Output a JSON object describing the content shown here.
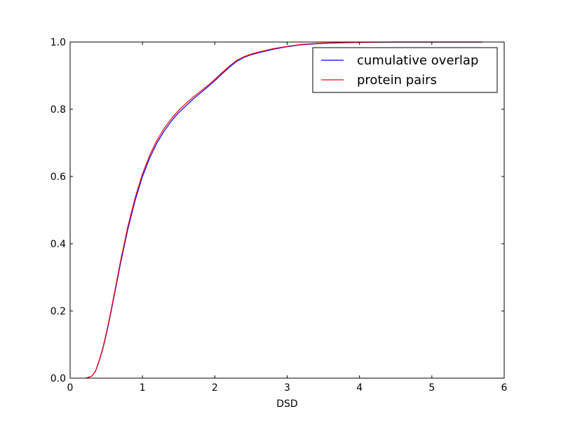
{
  "chart_data": {
    "type": "line",
    "title": "",
    "xlabel": "DSD",
    "ylabel": "",
    "xlim": [
      0,
      6
    ],
    "ylim": [
      0,
      1
    ],
    "x_ticks": [
      "0",
      "1",
      "2",
      "3",
      "4",
      "5",
      "6"
    ],
    "y_ticks": [
      "0.0",
      "0.2",
      "0.4",
      "0.6",
      "0.8",
      "1.0"
    ],
    "x_tick_values": [
      0,
      1,
      2,
      3,
      4,
      5,
      6
    ],
    "y_tick_values": [
      0,
      0.2,
      0.4,
      0.6,
      0.8,
      1.0
    ],
    "grid": false,
    "legend_position": "upper right",
    "series": [
      {
        "name": "cumulative overlap",
        "color": "#0000ff",
        "x": [
          0.22,
          0.3,
          0.35,
          0.4,
          0.45,
          0.5,
          0.55,
          0.6,
          0.7,
          0.8,
          0.9,
          1.0,
          1.1,
          1.2,
          1.3,
          1.4,
          1.5,
          1.6,
          1.7,
          1.8,
          1.9,
          2.0,
          2.1,
          2.2,
          2.3,
          2.4,
          2.5,
          2.6,
          2.8,
          3.0,
          3.2,
          3.5,
          4.0,
          4.5,
          5.0,
          5.5,
          5.7
        ],
        "y": [
          0.0,
          0.006,
          0.02,
          0.05,
          0.085,
          0.13,
          0.18,
          0.235,
          0.345,
          0.445,
          0.53,
          0.6,
          0.655,
          0.7,
          0.735,
          0.765,
          0.79,
          0.81,
          0.83,
          0.848,
          0.866,
          0.885,
          0.905,
          0.925,
          0.942,
          0.954,
          0.962,
          0.968,
          0.978,
          0.986,
          0.992,
          0.996,
          0.999,
          1.0,
          1.0,
          1.0,
          1.0
        ]
      },
      {
        "name": "protein pairs",
        "color": "#ff0000",
        "x": [
          0.22,
          0.3,
          0.35,
          0.4,
          0.45,
          0.5,
          0.55,
          0.6,
          0.7,
          0.8,
          0.9,
          1.0,
          1.1,
          1.2,
          1.3,
          1.4,
          1.5,
          1.6,
          1.7,
          1.8,
          1.9,
          2.0,
          2.1,
          2.2,
          2.3,
          2.4,
          2.5,
          2.6,
          2.8,
          3.0,
          3.2,
          3.5,
          4.0,
          4.5,
          5.0,
          5.5,
          5.7
        ],
        "y": [
          0.0,
          0.006,
          0.021,
          0.052,
          0.088,
          0.134,
          0.185,
          0.24,
          0.352,
          0.453,
          0.538,
          0.608,
          0.663,
          0.708,
          0.743,
          0.772,
          0.797,
          0.817,
          0.836,
          0.853,
          0.87,
          0.889,
          0.909,
          0.928,
          0.945,
          0.956,
          0.964,
          0.97,
          0.98,
          0.987,
          0.993,
          0.997,
          0.999,
          1.0,
          1.0,
          1.0,
          1.0
        ]
      }
    ]
  }
}
